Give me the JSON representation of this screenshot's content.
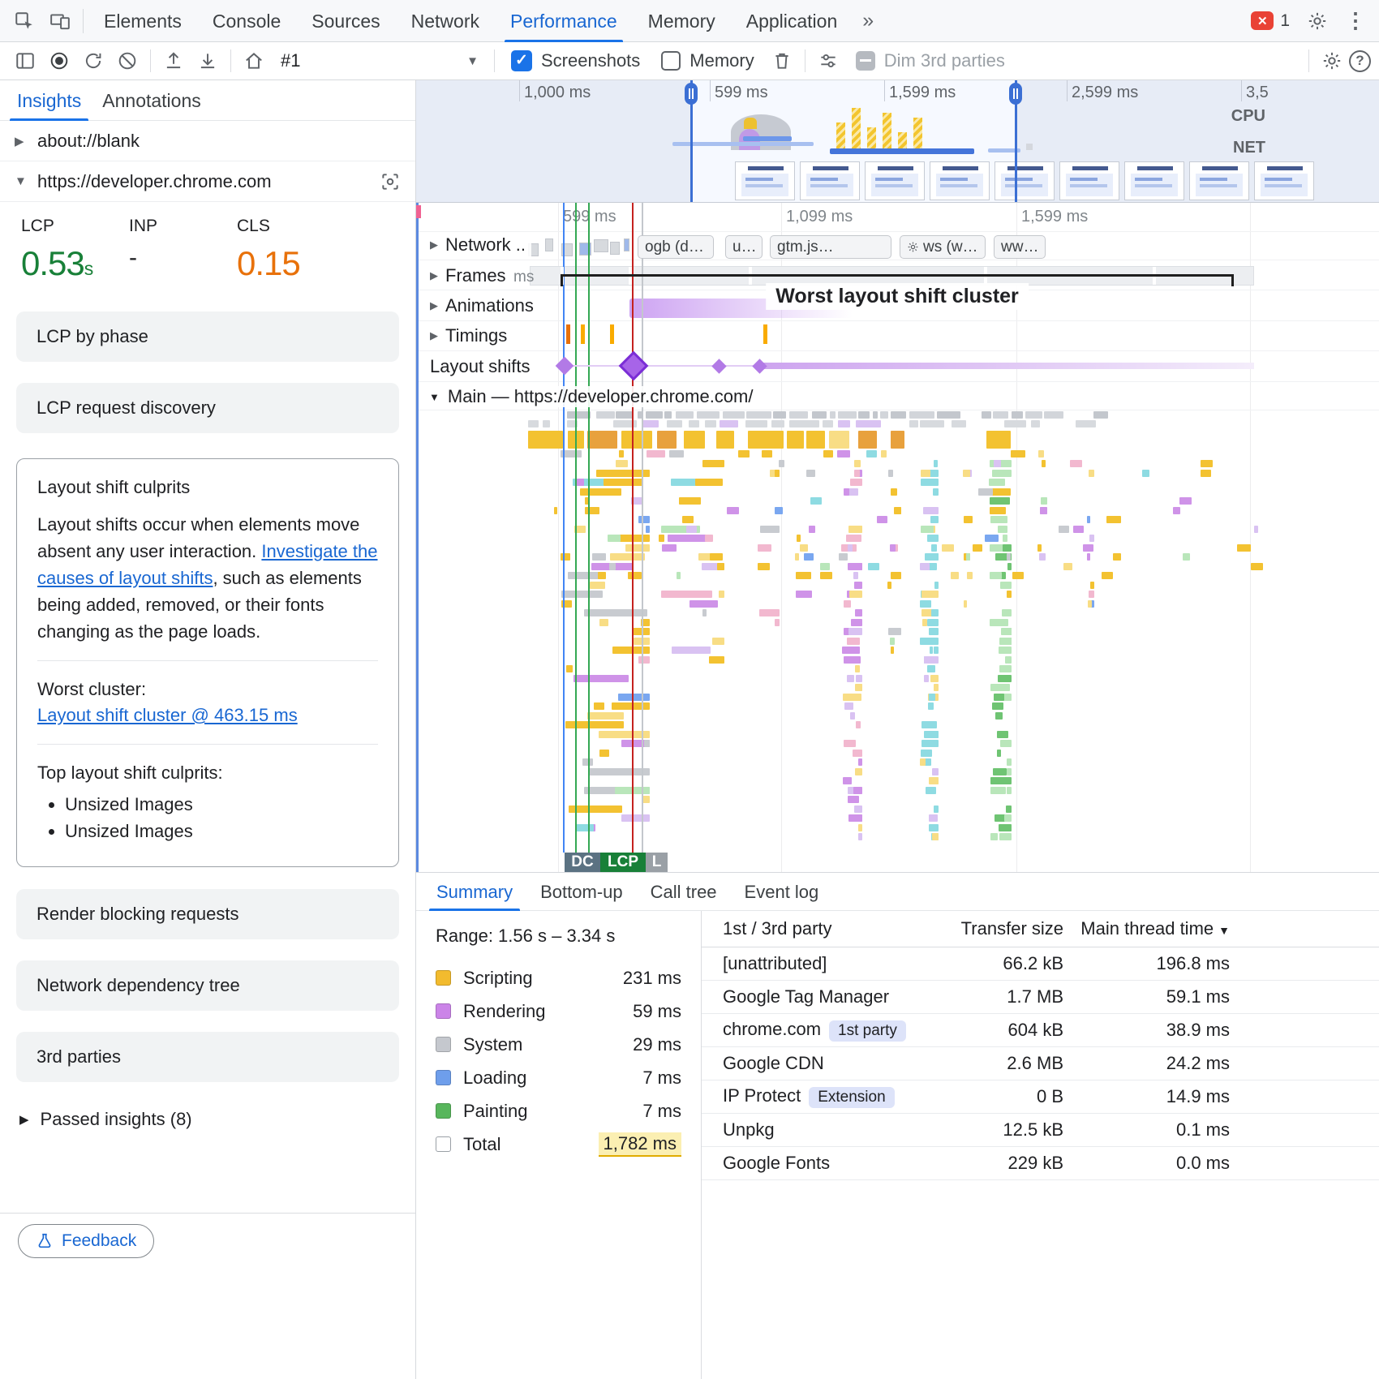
{
  "tabbar": {
    "tabs": [
      {
        "label": "Elements"
      },
      {
        "label": "Console"
      },
      {
        "label": "Sources"
      },
      {
        "label": "Network"
      },
      {
        "label": "Performance"
      },
      {
        "label": "Memory"
      },
      {
        "label": "Application"
      }
    ],
    "more_symbol": "»",
    "error_count": "1"
  },
  "toolbar": {
    "history_selected": "#1",
    "screenshots_label": "Screenshots",
    "memory_label": "Memory",
    "dim_label": "Dim 3rd parties"
  },
  "insights": {
    "tab_insights": "Insights",
    "tab_annotations": "Annotations",
    "row_blank": "about://blank",
    "row_site": "https://developer.chrome.com",
    "metrics": {
      "lcp_label": "LCP",
      "lcp_value": "0.53",
      "lcp_unit": "s",
      "inp_label": "INP",
      "inp_value": "-",
      "cls_label": "CLS",
      "cls_value": "0.15"
    },
    "card_lcp_phase": "LCP by phase",
    "card_lcp_discovery": "LCP request discovery",
    "culprits": {
      "title": "Layout shift culprits",
      "body_pre": "Layout shifts occur when elements move absent any user interaction. ",
      "body_link": "Investigate the causes of layout shifts",
      "body_post": ", such as elements being added, removed, or their fonts changing as the page loads.",
      "worst_label": "Worst cluster:",
      "worst_link": "Layout shift cluster @ 463.15 ms",
      "top_label": "Top layout shift culprits:",
      "bullet_1": "Unsized Images",
      "bullet_2": "Unsized Images"
    },
    "card_render_blocking": "Render blocking requests",
    "card_network_tree": "Network dependency tree",
    "card_3rd_parties": "3rd parties",
    "passed_insights": "Passed insights (8)",
    "feedback_label": "Feedback"
  },
  "overview": {
    "labels": [
      "1,000 ms",
      "599 ms",
      "1,599 ms",
      "2,599 ms",
      "3,5"
    ],
    "cpu_label": "CPU",
    "net_label": "NET"
  },
  "timeline": {
    "ruler": [
      "599 ms",
      "1,099 ms",
      "1,599 ms"
    ],
    "track_network": "Network ..",
    "track_frames": "Frames",
    "frames_ms": "ms",
    "track_animations": "Animations",
    "track_timings": "Timings",
    "track_layout_shifts": "Layout shifts",
    "cluster_label": "Worst layout shift cluster",
    "main_track": "Main — https://developer.chrome.com/",
    "pills": [
      "ogb (d…",
      "u…",
      "gtm.js…",
      "ws (w…",
      "ww…"
    ],
    "markers": {
      "dcl": "DC",
      "lcp": "LCP",
      "l": "L"
    }
  },
  "bottom": {
    "tabs": [
      {
        "label": "Summary"
      },
      {
        "label": "Bottom-up"
      },
      {
        "label": "Call tree"
      },
      {
        "label": "Event log"
      }
    ],
    "range": "Range: 1.56 s – 3.34 s",
    "legend": [
      {
        "name": "Scripting",
        "value": "231 ms",
        "color": "#f2bb2e"
      },
      {
        "name": "Rendering",
        "value": "59 ms",
        "color": "#cb84e8"
      },
      {
        "name": "System",
        "value": "29 ms",
        "color": "#c5c8ce"
      },
      {
        "name": "Loading",
        "value": "7 ms",
        "color": "#6e9eeb"
      },
      {
        "name": "Painting",
        "value": "7 ms",
        "color": "#58b65c"
      }
    ],
    "total_label": "Total",
    "total_value": "1,782 ms",
    "table": {
      "col_party": "1st / 3rd party",
      "col_size": "Transfer size",
      "col_time": "Main thread time",
      "rows": [
        {
          "name": "[unattributed]",
          "size": "66.2 kB",
          "time": "196.8 ms"
        },
        {
          "name": "Google Tag Manager",
          "size": "1.7 MB",
          "time": "59.1 ms"
        },
        {
          "name": "chrome.com",
          "badge": "1st party",
          "size": "604 kB",
          "time": "38.9 ms"
        },
        {
          "name": "Google CDN",
          "size": "2.6 MB",
          "time": "24.2 ms"
        },
        {
          "name": "IP Protect",
          "badge": "Extension",
          "size": "0 B",
          "time": "14.9 ms"
        },
        {
          "name": "Unpkg",
          "size": "12.5 kB",
          "time": "0.1 ms"
        },
        {
          "name": "Google Fonts",
          "size": "229 kB",
          "time": "0.0 ms"
        }
      ]
    }
  },
  "palette": {
    "scripting": "#f3c231",
    "scripting_light": "#f8dd85",
    "rendering": "#cf93e8",
    "system": "#c8cbd0",
    "loading": "#7aa7f0",
    "painting": "#6fc473",
    "painting_light": "#b9e6ba",
    "teal": "#8edbe2",
    "pink": "#f2b8cf",
    "lavender": "#d9c2f2",
    "orange": "#e8a13d"
  }
}
